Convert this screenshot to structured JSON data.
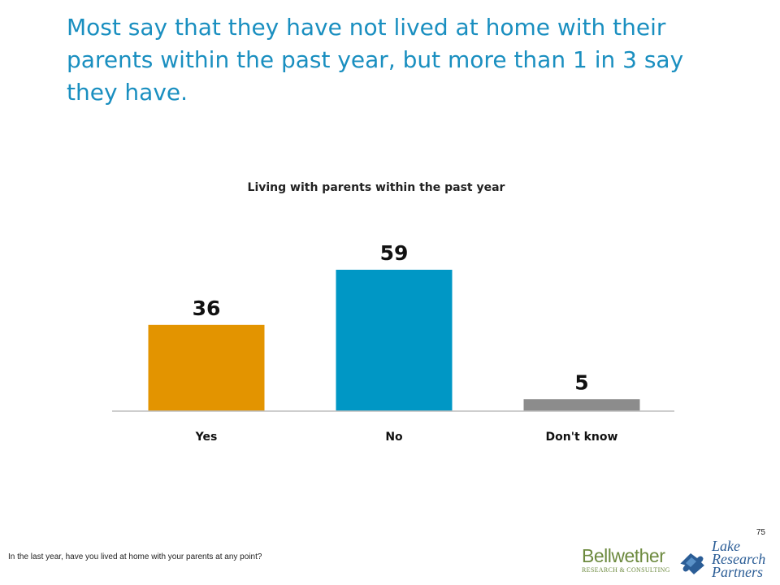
{
  "slide": {
    "title": "Most say that they have not lived at home with their parents within the past year, but more than 1 in 3 say they have.",
    "page_number": "75",
    "footnote": "In the last year, have you lived at home with your parents at any point?"
  },
  "logos": {
    "bellwether": {
      "name": "Bellwether",
      "tagline": "RESEARCH & CONSULTING",
      "color": "#6d8a3f"
    },
    "lake_research": {
      "line1": "Lake",
      "line2": "Research",
      "line3": "Partners",
      "color": "#2b5d96"
    }
  },
  "chart_data": {
    "type": "bar",
    "title": "Living with parents within the past year",
    "categories": [
      "Yes",
      "No",
      "Don't know"
    ],
    "values": [
      36,
      59,
      5
    ],
    "colors": [
      "#e39400",
      "#0097c5",
      "#8c8c8c"
    ],
    "data_labels": [
      "36",
      "59",
      "5"
    ],
    "ylim": [
      0,
      59
    ],
    "xlabel": "",
    "ylabel": "",
    "grid": false,
    "legend": "none"
  }
}
